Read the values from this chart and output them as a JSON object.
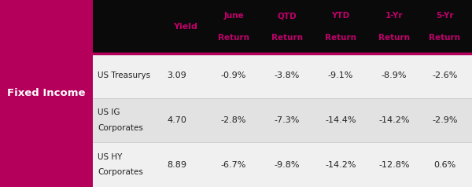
{
  "title_left": "Fixed Income",
  "header_labels_top": [
    "June",
    "QTD",
    "YTD",
    "1-Yr",
    "5-Yr"
  ],
  "header_labels_bot": [
    "Return",
    "Return",
    "Return",
    "Return",
    "Return"
  ],
  "yield_label": "Yield",
  "rows": [
    {
      "name": "US Treasurys",
      "name2": "",
      "yield": "3.09",
      "values": [
        "-0.9%",
        "-3.8%",
        "-9.1%",
        "-8.9%",
        "-2.6%"
      ]
    },
    {
      "name": "US IG",
      "name2": "Corporates",
      "yield": "4.70",
      "values": [
        "-2.8%",
        "-7.3%",
        "-14.4%",
        "-14.2%",
        "-2.9%"
      ]
    },
    {
      "name": "US HY",
      "name2": "Corporates",
      "yield": "8.89",
      "values": [
        "-6.7%",
        "-9.8%",
        "-14.2%",
        "-12.8%",
        "0.6%"
      ]
    }
  ],
  "header_bg": "#0a0a0a",
  "header_text_color": "#c0006a",
  "row_bg_odd": "#f0f0f0",
  "row_bg_even": "#e2e2e2",
  "left_panel_color": "#b5005b",
  "left_panel_text_color": "#ffffff",
  "data_text_color": "#222222",
  "separator_color": "#b5005b",
  "fig_width": 6.0,
  "fig_height": 2.38
}
